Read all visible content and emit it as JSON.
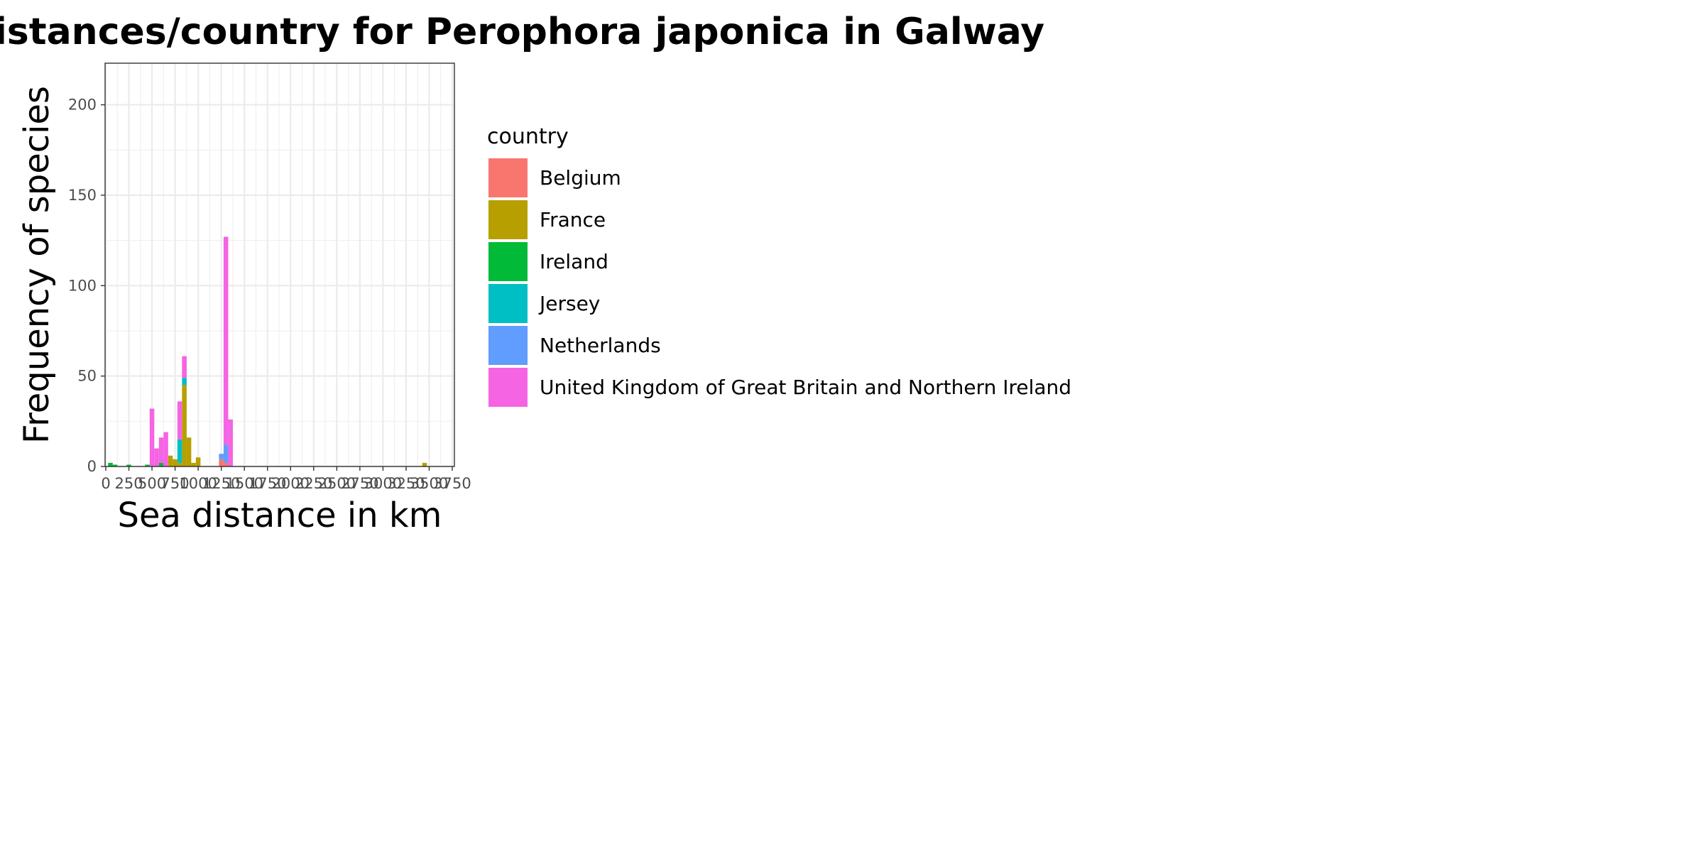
{
  "chart_data": {
    "type": "bar",
    "stacked": true,
    "title": "Sea distances/country for Perophora japonica in Galway",
    "xlabel": "Sea distance in km",
    "ylabel": "Frequency of species",
    "xlim": [
      0,
      3750
    ],
    "ylim": [
      0,
      220
    ],
    "x_ticks": [
      "0",
      "250",
      "500",
      "750",
      "1000",
      "1250",
      "1500",
      "1750",
      "2000",
      "2250",
      "2500",
      "2750",
      "3000",
      "3250",
      "3500",
      "3750"
    ],
    "y_ticks": [
      "0",
      "50",
      "100",
      "150",
      "200"
    ],
    "grid": true,
    "bin_width": 50,
    "legend_title": "country",
    "legend_position": "right",
    "series": [
      {
        "name": "Belgium",
        "color": "#F8766D",
        "values": [
          {
            "x": 1250,
            "y": 4
          },
          {
            "x": 1300,
            "y": 2
          }
        ]
      },
      {
        "name": "France",
        "color": "#B79F00",
        "values": [
          {
            "x": 700,
            "y": 6
          },
          {
            "x": 750,
            "y": 4
          },
          {
            "x": 800,
            "y": 2
          },
          {
            "x": 850,
            "y": 45
          },
          {
            "x": 900,
            "y": 16
          },
          {
            "x": 950,
            "y": 2
          },
          {
            "x": 1000,
            "y": 5
          },
          {
            "x": 3450,
            "y": 2
          }
        ]
      },
      {
        "name": "Ireland",
        "color": "#00BA38",
        "values": [
          {
            "x": 50,
            "y": 2
          },
          {
            "x": 100,
            "y": 1
          },
          {
            "x": 250,
            "y": 1
          },
          {
            "x": 450,
            "y": 1
          },
          {
            "x": 600,
            "y": 2
          }
        ]
      },
      {
        "name": "Jersey",
        "color": "#00BFC4",
        "values": [
          {
            "x": 800,
            "y": 13
          },
          {
            "x": 850,
            "y": 4
          }
        ]
      },
      {
        "name": "Netherlands",
        "color": "#619CFF",
        "values": [
          {
            "x": 1250,
            "y": 3
          },
          {
            "x": 1300,
            "y": 10
          }
        ]
      },
      {
        "name": "United Kingdom of Great Britain and Northern Ireland",
        "color": "#F564E3",
        "values": [
          {
            "x": 500,
            "y": 32
          },
          {
            "x": 550,
            "y": 10
          },
          {
            "x": 600,
            "y": 14
          },
          {
            "x": 650,
            "y": 19
          },
          {
            "x": 800,
            "y": 21
          },
          {
            "x": 850,
            "y": 12
          },
          {
            "x": 1300,
            "y": 115
          },
          {
            "x": 1350,
            "y": 26
          }
        ]
      }
    ]
  }
}
